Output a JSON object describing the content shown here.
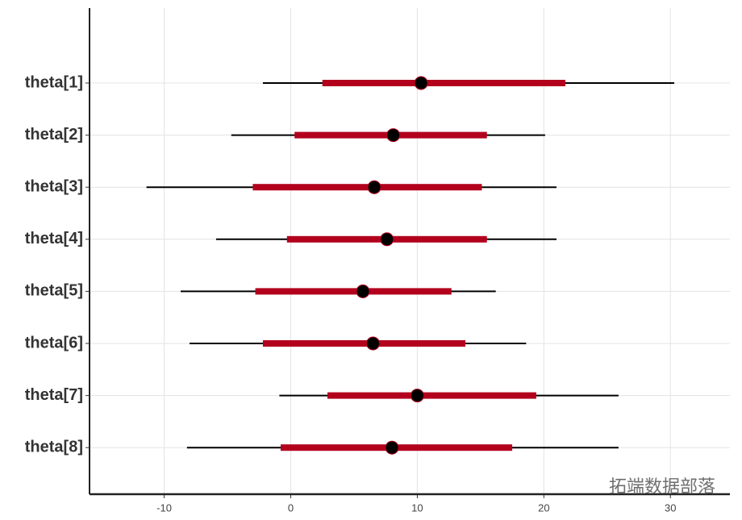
{
  "chart_data": {
    "type": "interval",
    "categories": [
      "theta[1]",
      "theta[2]",
      "theta[3]",
      "theta[4]",
      "theta[5]",
      "theta[6]",
      "theta[7]",
      "theta[8]"
    ],
    "outer_low": [
      -2.2,
      -4.7,
      -11.4,
      -5.9,
      -8.7,
      -8.0,
      -0.9,
      -8.2
    ],
    "inner_low": [
      2.5,
      0.3,
      -3.0,
      -0.3,
      -2.8,
      -2.2,
      2.9,
      -0.8
    ],
    "median": [
      10.3,
      8.1,
      6.6,
      7.6,
      5.7,
      6.5,
      10.0,
      8.0
    ],
    "inner_high": [
      21.7,
      15.5,
      15.1,
      15.5,
      12.7,
      13.8,
      19.4,
      17.5
    ],
    "outer_high": [
      30.3,
      20.1,
      21.0,
      21.0,
      16.2,
      18.6,
      25.9,
      25.9
    ],
    "inner_color": "#b2001d",
    "outer_color": "#000000",
    "point_color": "#000000",
    "xlim": [
      -15.9,
      34.7
    ],
    "xticks": [
      -10,
      0,
      10,
      20,
      30
    ],
    "grid": true,
    "watermark": "拓端数据部落"
  }
}
